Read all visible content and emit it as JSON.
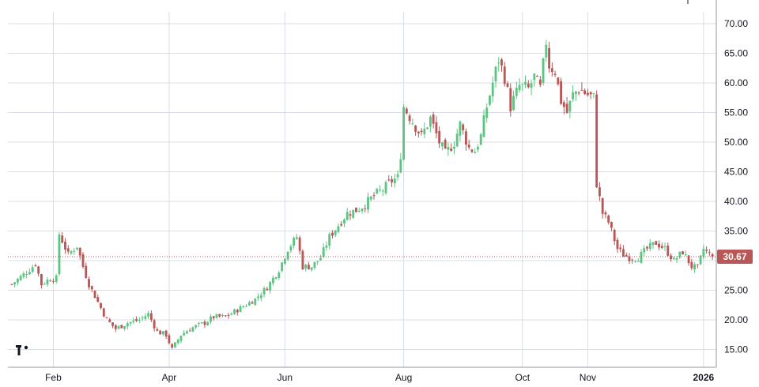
{
  "chart_data": {
    "type": "candlestick",
    "y_axis": {
      "side": "right",
      "min": 12,
      "max": 72,
      "ticks": [
        15,
        20,
        25,
        30,
        35,
        40,
        45,
        50,
        55,
        60,
        65,
        70
      ],
      "tick_labels": [
        "15.00",
        "20.00",
        "25.00",
        "30.00",
        "35.00",
        "40.00",
        "45.00",
        "50.00",
        "55.00",
        "60.00",
        "65.00",
        "70.00"
      ]
    },
    "x_axis": {
      "ticks": [
        {
          "label": "Feb",
          "index": 14,
          "bold": false
        },
        {
          "label": "Apr",
          "index": 53,
          "bold": false
        },
        {
          "label": "Jun",
          "index": 92,
          "bold": false
        },
        {
          "label": "Aug",
          "index": 132,
          "bold": false
        },
        {
          "label": "Oct",
          "index": 172,
          "bold": false
        },
        {
          "label": "Nov",
          "index": 194,
          "bold": false
        },
        {
          "label": "2026",
          "index": 233,
          "bold": true
        }
      ]
    },
    "grid": true,
    "colors": {
      "up": "#5cc583",
      "down": "#b85755",
      "grid": "#d8dde6",
      "last_price": "#b85755"
    },
    "last_price": {
      "value": 30.67,
      "label": "30.67"
    },
    "ohlc_keypoints": [
      [
        0,
        26
      ],
      [
        6,
        28.5
      ],
      [
        8,
        29.5
      ],
      [
        10,
        26
      ],
      [
        13,
        27
      ],
      [
        15,
        27
      ],
      [
        16,
        34.5
      ],
      [
        19,
        31
      ],
      [
        22,
        32.5
      ],
      [
        24,
        29
      ],
      [
        26,
        26
      ],
      [
        29,
        23
      ],
      [
        32,
        20
      ],
      [
        35,
        18.5
      ],
      [
        39,
        19.5
      ],
      [
        43,
        20
      ],
      [
        46,
        21
      ],
      [
        49,
        18
      ],
      [
        52,
        17.5
      ],
      [
        54,
        15
      ],
      [
        57,
        17.5
      ],
      [
        60,
        18.5
      ],
      [
        65,
        19.5
      ],
      [
        68,
        20.5
      ],
      [
        72,
        20.5
      ],
      [
        77,
        22
      ],
      [
        82,
        23.5
      ],
      [
        86,
        25.5
      ],
      [
        90,
        28.5
      ],
      [
        93,
        32
      ],
      [
        96,
        34
      ],
      [
        98,
        29
      ],
      [
        101,
        29
      ],
      [
        104,
        30.5
      ],
      [
        107,
        34
      ],
      [
        110,
        36
      ],
      [
        113,
        38
      ],
      [
        116,
        38.5
      ],
      [
        119,
        39.5
      ],
      [
        122,
        41
      ],
      [
        125,
        42
      ],
      [
        128,
        43.5
      ],
      [
        130,
        44
      ],
      [
        131,
        48
      ],
      [
        132,
        56
      ],
      [
        135,
        53.5
      ],
      [
        138,
        51
      ],
      [
        141,
        54
      ],
      [
        144,
        50
      ],
      [
        146,
        48
      ],
      [
        149,
        50
      ],
      [
        151,
        53
      ],
      [
        154,
        49
      ],
      [
        156,
        48.5
      ],
      [
        158,
        51
      ],
      [
        160,
        56
      ],
      [
        162,
        60
      ],
      [
        164,
        64
      ],
      [
        166,
        61
      ],
      [
        168,
        56
      ],
      [
        171,
        59.5
      ],
      [
        174,
        59
      ],
      [
        176,
        61
      ],
      [
        178,
        59
      ],
      [
        180,
        67
      ],
      [
        181,
        63
      ],
      [
        183,
        62
      ],
      [
        185,
        57
      ],
      [
        187,
        55
      ],
      [
        189,
        58
      ],
      [
        191,
        59
      ],
      [
        194,
        58
      ],
      [
        196,
        57.5
      ],
      [
        197,
        43
      ],
      [
        199,
        38
      ],
      [
        201,
        36.5
      ],
      [
        204,
        32
      ],
      [
        206,
        31
      ],
      [
        208,
        30.5
      ],
      [
        211,
        30.5
      ],
      [
        214,
        32
      ],
      [
        217,
        33
      ],
      [
        220,
        32
      ],
      [
        223,
        30
      ],
      [
        226,
        31.5
      ],
      [
        229,
        29
      ],
      [
        231,
        28.7
      ],
      [
        233,
        32
      ],
      [
        235,
        31
      ],
      [
        236,
        30.67
      ]
    ],
    "num_candles": 237
  }
}
